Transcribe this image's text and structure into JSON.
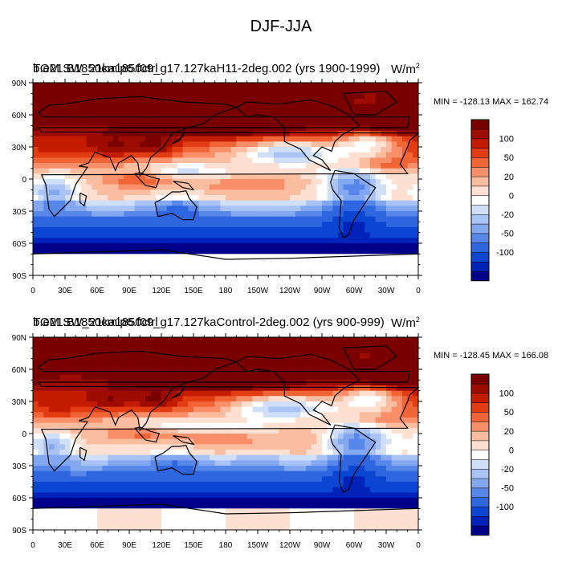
{
  "title": "DJF-JJA",
  "colors": {
    "levels": [
      "#00008a",
      "#0022b8",
      "#0a46d2",
      "#2e66e0",
      "#5887ea",
      "#84a8f0",
      "#aac3f5",
      "#cfdff8",
      "#ffffff",
      "#fde0d2",
      "#fbbda0",
      "#f88f68",
      "#f06436",
      "#e23d12",
      "#c41c00",
      "#9e0c00",
      "#7a0000"
    ],
    "coast": "#000000"
  },
  "chart_data": [
    {
      "type": "heatmap",
      "title_line1": "TOM SW_21ka1850ctrl",
      "title_line2": "b.e21.B1850cmip6.f09_g17.127kaH11-2deg.002 (yrs 1900-1999)",
      "units_base": "W/m",
      "units_exp": "2",
      "min_label": "MIN = -128.13",
      "max_label": "MAX = 162.74",
      "xticks": [
        "0",
        "30E",
        "60E",
        "90E",
        "120E",
        "150E",
        "180",
        "150W",
        "120W",
        "90W",
        "60W",
        "30W",
        "0"
      ],
      "yticks": [
        "90N",
        "60N",
        "30N",
        "0",
        "30S",
        "60S",
        "90S"
      ],
      "colorbar_labels": [
        "100",
        "50",
        "20",
        "0",
        "-20",
        "-50",
        "-100"
      ],
      "colorbar_levels": [
        -120,
        -110,
        -100,
        -80,
        -60,
        -50,
        -40,
        -30,
        -20,
        -10,
        0,
        10,
        20,
        30,
        40,
        50,
        60,
        80,
        100,
        110,
        120
      ]
    },
    {
      "type": "heatmap",
      "title_line1": "TOM SW_21ka1850ctrl",
      "title_line2": "b.e21.B1850cmip6.f09_g17.127kaControl-2deg.002 (yrs 900-999)",
      "units_base": "W/m",
      "units_exp": "2",
      "min_label": "MIN = -128.45",
      "max_label": "MAX = 166.08",
      "xticks": [
        "0",
        "30E",
        "60E",
        "90E",
        "120E",
        "150E",
        "180",
        "150W",
        "120W",
        "90W",
        "60W",
        "30W",
        "0"
      ],
      "yticks": [
        "90N",
        "60N",
        "30N",
        "0",
        "30S",
        "60S",
        "90S"
      ],
      "colorbar_labels": [
        "100",
        "50",
        "20",
        "0",
        "-20",
        "-50",
        "-100"
      ],
      "colorbar_levels": [
        -120,
        -110,
        -100,
        -80,
        -60,
        -50,
        -40,
        -30,
        -20,
        -10,
        0,
        10,
        20,
        30,
        40,
        50,
        60,
        80,
        100,
        110,
        120
      ]
    }
  ]
}
